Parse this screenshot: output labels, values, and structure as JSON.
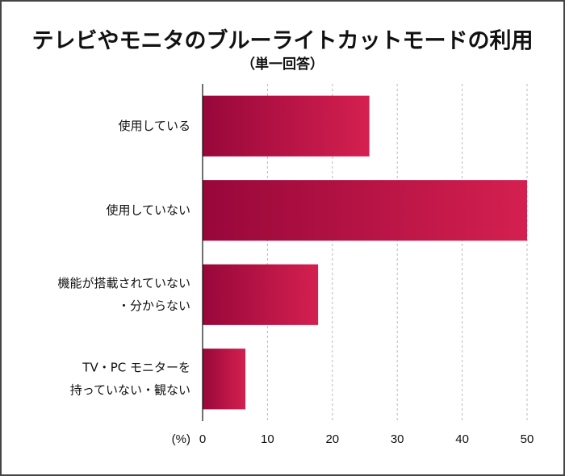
{
  "chart_data": {
    "type": "barh",
    "title": "テレビやモニタのブルーライトカットモードの利用",
    "subtitle": "（単一回答）",
    "x_label": "(%)",
    "categories": [
      [
        "使用している"
      ],
      [
        "使用していない"
      ],
      [
        "機能が搭載されていない",
        "・分からない"
      ],
      [
        "TV・PC モニターを",
        "持っていない・観ない"
      ]
    ],
    "values": [
      25.7,
      50,
      17.8,
      6.6
    ],
    "color": "#d42050",
    "xlim": [
      0,
      50
    ],
    "xticks": [
      0,
      10,
      20,
      30,
      40,
      50
    ],
    "grid": true
  }
}
